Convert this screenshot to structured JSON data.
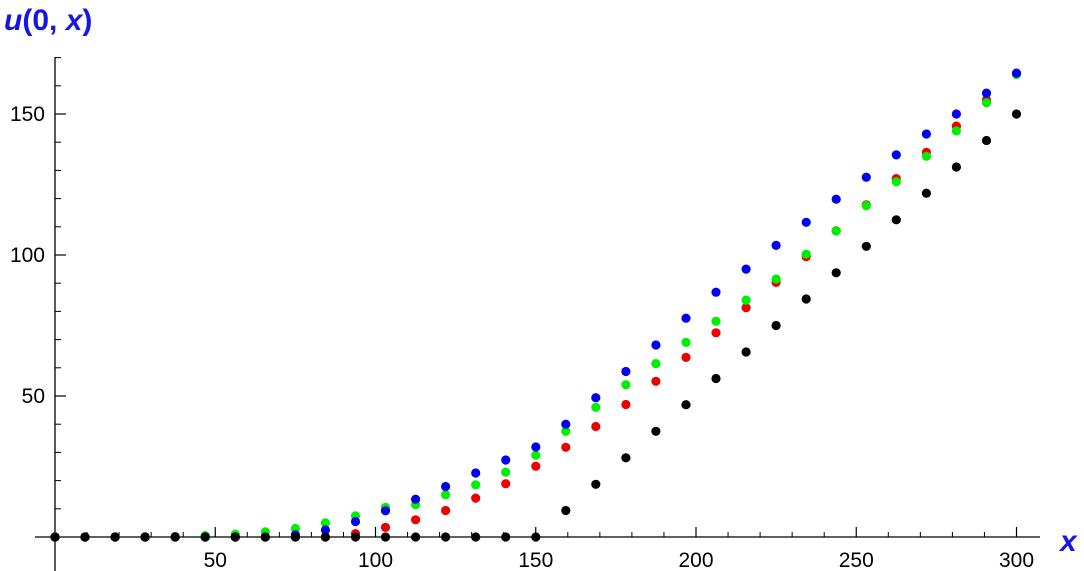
{
  "chart_data": {
    "type": "scatter",
    "title": "",
    "ylabel_parts": [
      "u",
      "(0, ",
      "x",
      ")"
    ],
    "xlabel": "x",
    "xlim": [
      0,
      305
    ],
    "ylim": [
      0,
      170
    ],
    "x_ticks": [
      50,
      100,
      150,
      200,
      250,
      300
    ],
    "y_ticks": [
      50,
      100,
      150
    ],
    "grid": false,
    "legend": "none",
    "x": [
      0,
      9.375,
      18.75,
      28.125,
      37.5,
      46.875,
      56.25,
      65.625,
      75,
      84.375,
      93.75,
      103.125,
      112.5,
      121.875,
      131.25,
      140.625,
      150,
      159.375,
      168.75,
      178.125,
      187.5,
      196.875,
      206.25,
      215.625,
      225,
      234.375,
      243.75,
      253.125,
      262.5,
      271.875,
      281.25,
      290.625,
      300
    ],
    "series": [
      {
        "color": "#000000",
        "values": [
          0,
          0,
          0,
          0,
          0,
          0,
          0,
          0,
          0,
          0,
          0,
          0,
          0,
          0,
          0,
          0,
          0,
          9.4,
          18.7,
          28.1,
          37.5,
          46.9,
          56.2,
          65.6,
          75.0,
          84.4,
          93.7,
          103.1,
          112.5,
          121.9,
          131.2,
          140.6,
          150.0
        ]
      },
      {
        "color": "#ee0000",
        "values": [
          0,
          0,
          0,
          0,
          0,
          0,
          0,
          0,
          0,
          0,
          1.2,
          3.4,
          6.1,
          9.4,
          13.8,
          18.9,
          25.1,
          31.8,
          39.2,
          47.0,
          55.2,
          63.7,
          72.4,
          81.3,
          90.3,
          99.4,
          108.6,
          117.8,
          127.1,
          136.4,
          145.7,
          155.0,
          164.3
        ]
      },
      {
        "color": "#00ee00",
        "values": [
          0,
          0,
          0,
          0,
          0.2,
          0.5,
          1.0,
          1.8,
          3.0,
          5.0,
          7.5,
          10.5,
          11.5,
          15.0,
          18.5,
          23.0,
          29.0,
          37.5,
          46.0,
          54.0,
          61.5,
          69.0,
          76.5,
          84.0,
          91.5,
          100.3,
          108.5,
          117.5,
          126.0,
          135.0,
          144.0,
          154.0,
          164.0
        ]
      },
      {
        "color": "#0000ee",
        "values": [
          0,
          0,
          0,
          0,
          0,
          0,
          0,
          0,
          0.8,
          2.5,
          5.5,
          9.3,
          13.4,
          17.9,
          22.7,
          27.3,
          31.9,
          40.0,
          49.4,
          58.7,
          68.1,
          77.6,
          86.8,
          95.0,
          103.4,
          111.6,
          119.8,
          127.6,
          135.5,
          142.9,
          150.0,
          157.4,
          164.5
        ]
      }
    ]
  }
}
